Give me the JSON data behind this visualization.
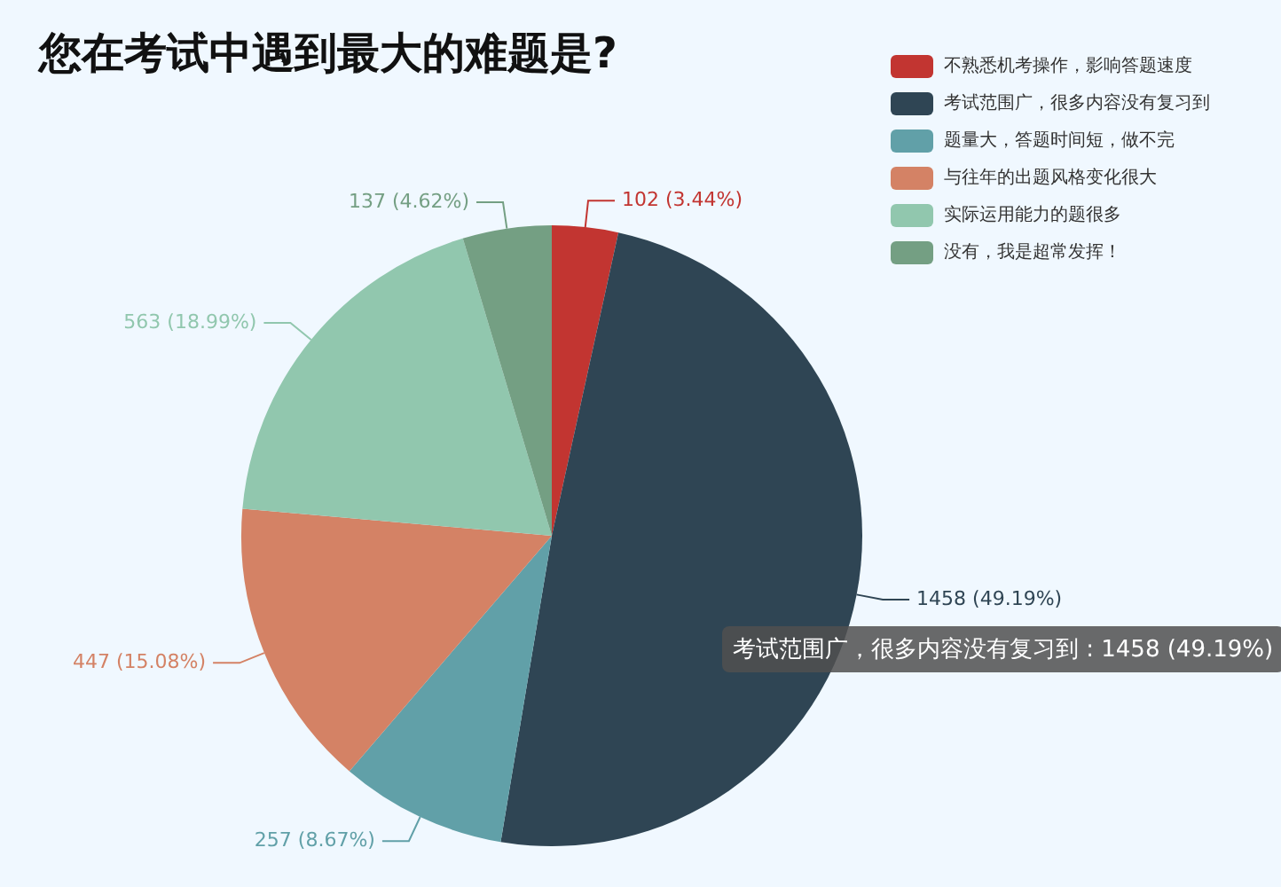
{
  "chart_data": {
    "type": "pie",
    "title": "您在考试中遇到最大的难题是?",
    "categories": [
      "不熟悉机考操作，影响答题速度",
      "考试范围广，很多内容没有复习到",
      "题量大，答题时间短，做不完",
      "与往年的出题风格变化很大",
      "实际运用能力的题很多",
      "没有，我是超常发挥！"
    ],
    "values": [
      102,
      1458,
      257,
      447,
      563,
      137
    ],
    "colors": [
      "#c23531",
      "#2f4554",
      "#61a0a8",
      "#d48265",
      "#91c7ae",
      "#749f83"
    ],
    "value_labels": [
      "102 (3.44%)",
      "1458 (49.19%)",
      "257 (8.67%)",
      "447 (15.08%)",
      "563 (18.99%)",
      "137 (4.62%)"
    ],
    "legend": "top right",
    "annotations": [
      "考试范围广，很多内容没有复习到 : 1458 (49.19%)"
    ]
  }
}
